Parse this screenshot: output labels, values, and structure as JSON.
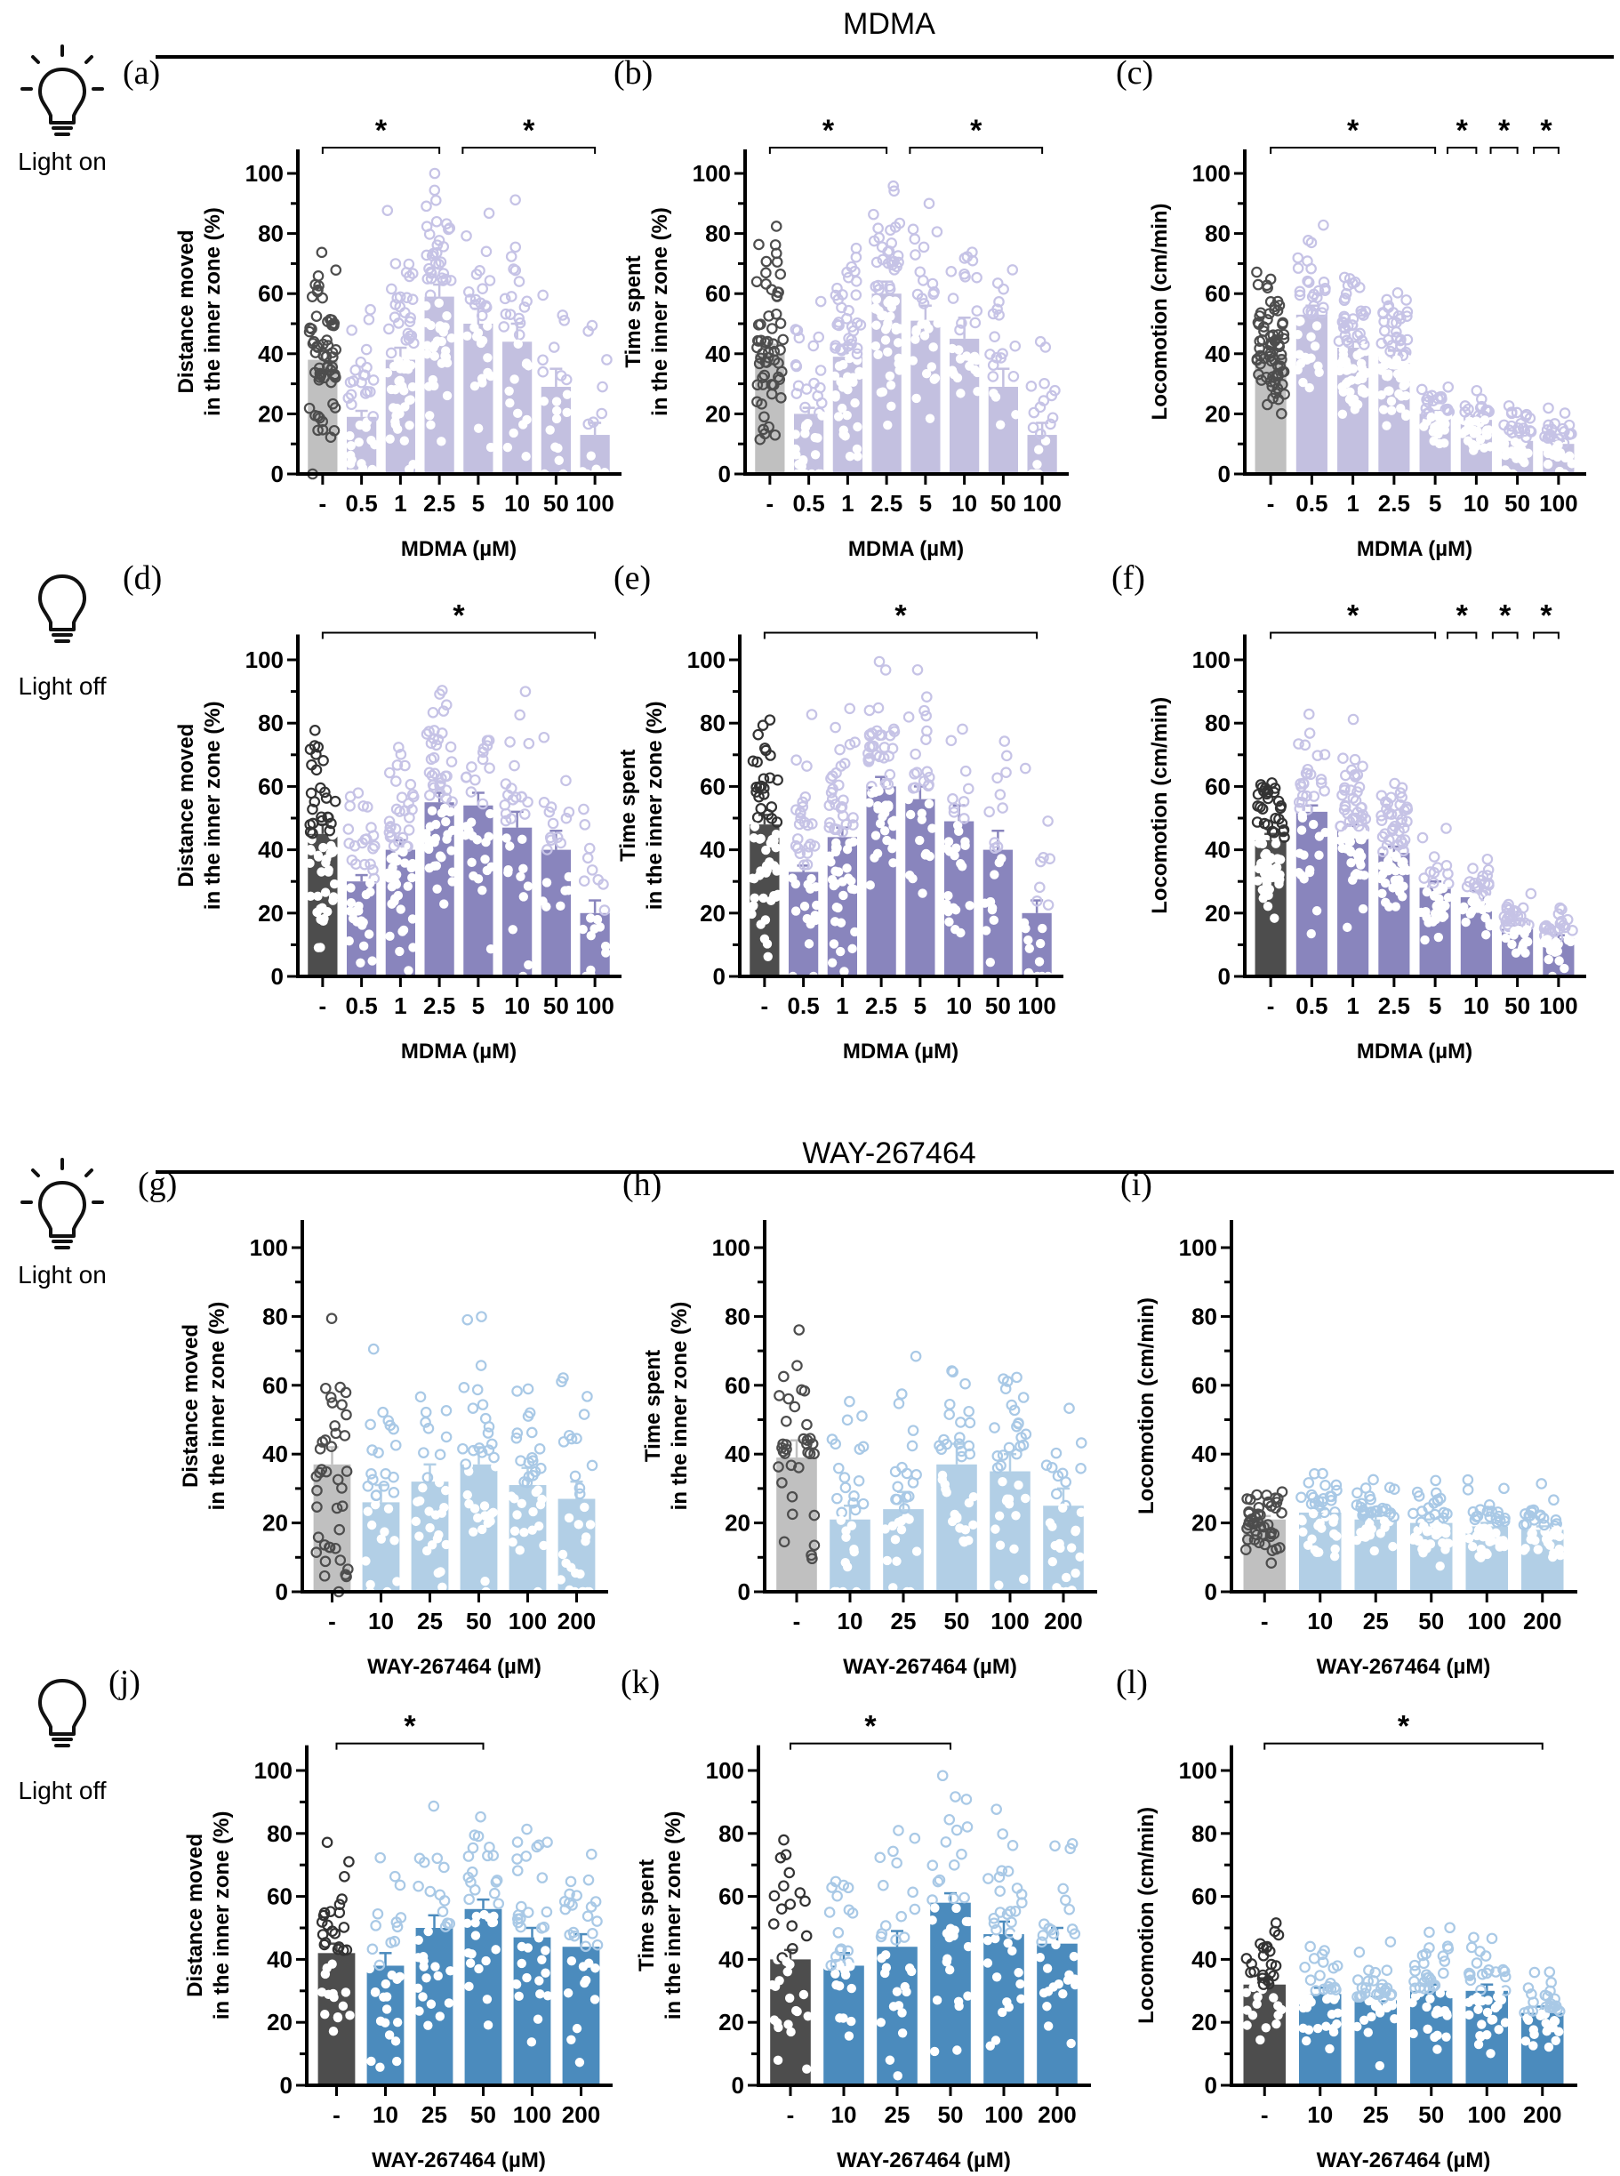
{
  "sections": [
    {
      "title": "MDMA"
    },
    {
      "title": "WAY-267464"
    }
  ],
  "conditions": {
    "light_on": "Light on",
    "light_off": "Light off"
  },
  "colors": {
    "control_light_on": "#c0c0c0",
    "control_light_off": "#4d4d4d",
    "mdma_light_on": "#c3c0e0",
    "mdma_light_off": "#8985bd",
    "way_light_on": "#b2cfe6",
    "way_light_off": "#4b8bbd",
    "point_light_on_dark": "#4d4d4d",
    "point_light_on_open": "#c6c3e6",
    "point_way_open": "#a9c9e6"
  },
  "chart_data": [
    {
      "id": "a",
      "letter": "(a)",
      "type": "bar",
      "condition": "light_on",
      "drug": "mdma",
      "categories": [
        "-",
        "0.5",
        "1",
        "2.5",
        "5",
        "10",
        "50",
        "100"
      ],
      "values": [
        38,
        19,
        38,
        59,
        50,
        44,
        29,
        13
      ],
      "sem": [
        3,
        2,
        4,
        4,
        5,
        6,
        6,
        4
      ],
      "n": [
        60,
        40,
        60,
        60,
        30,
        30,
        20,
        20
      ],
      "ylabel": [
        "Distance moved",
        "in the inner zone (%)"
      ],
      "xlabel": "MDMA (µM)",
      "yticks": [
        0,
        20,
        40,
        60,
        80,
        100
      ],
      "ylim": [
        0,
        108
      ],
      "significance": [
        {
          "from": 0,
          "to": 3,
          "label": "*"
        },
        {
          "from": 3.6,
          "to": 7,
          "label": "*"
        }
      ]
    },
    {
      "id": "b",
      "letter": "(b)",
      "type": "bar",
      "condition": "light_on",
      "drug": "mdma",
      "categories": [
        "-",
        "0.5",
        "1",
        "2.5",
        "5",
        "10",
        "50",
        "100"
      ],
      "values": [
        40,
        20,
        39,
        60,
        51,
        45,
        29,
        13
      ],
      "sem": [
        3,
        2,
        4,
        4,
        5,
        7,
        6,
        4
      ],
      "n": [
        60,
        40,
        60,
        60,
        30,
        30,
        20,
        20
      ],
      "ylabel": [
        "Time spent",
        "in the inner zone (%)"
      ],
      "xlabel": "MDMA (µM)",
      "yticks": [
        0,
        20,
        40,
        60,
        80,
        100
      ],
      "ylim": [
        0,
        108
      ],
      "significance": [
        {
          "from": 0,
          "to": 3,
          "label": "*"
        },
        {
          "from": 3.6,
          "to": 7,
          "label": "*"
        }
      ]
    },
    {
      "id": "c",
      "letter": "(c)",
      "type": "bar",
      "condition": "light_on",
      "drug": "mdma",
      "categories": [
        "-",
        "0.5",
        "1",
        "2.5",
        "5",
        "10",
        "50",
        "100"
      ],
      "values": [
        40,
        53,
        42,
        39,
        20,
        18,
        11,
        10
      ],
      "sem": [
        2,
        3,
        2,
        2,
        1,
        1,
        1,
        1
      ],
      "n": [
        70,
        40,
        70,
        70,
        40,
        40,
        40,
        40
      ],
      "ylabel": [
        "Locomotion (cm/min)"
      ],
      "xlabel": "MDMA (µM)",
      "yticks": [
        0,
        20,
        40,
        60,
        80,
        100
      ],
      "ylim": [
        0,
        108
      ],
      "significance": [
        {
          "from": 0,
          "to": 4,
          "label": "*"
        },
        {
          "from": 4.3,
          "to": 5,
          "label": "*"
        },
        {
          "from": 5.35,
          "to": 6,
          "label": "*"
        },
        {
          "from": 6.4,
          "to": 7,
          "label": "*"
        }
      ]
    },
    {
      "id": "d",
      "letter": "(d)",
      "type": "bar",
      "condition": "light_off",
      "drug": "mdma",
      "categories": [
        "-",
        "0.5",
        "1",
        "2.5",
        "5",
        "10",
        "50",
        "100"
      ],
      "values": [
        45,
        30,
        40,
        55,
        54,
        47,
        40,
        20
      ],
      "sem": [
        3,
        2,
        3,
        3,
        4,
        5,
        6,
        4
      ],
      "n": [
        60,
        40,
        60,
        60,
        30,
        30,
        20,
        20
      ],
      "ylabel": [
        "Distance moved",
        "in the inner zone (%)"
      ],
      "xlabel": "MDMA (µM)",
      "yticks": [
        0,
        20,
        40,
        60,
        80,
        100
      ],
      "ylim": [
        0,
        108
      ],
      "significance": [
        {
          "from": 0,
          "to": 7,
          "label": "*"
        }
      ]
    },
    {
      "id": "e",
      "letter": "(e)",
      "type": "bar",
      "condition": "light_off",
      "drug": "mdma",
      "categories": [
        "-",
        "0.5",
        "1",
        "2.5",
        "5",
        "10",
        "50",
        "100"
      ],
      "values": [
        48,
        33,
        44,
        60,
        56,
        49,
        40,
        20
      ],
      "sem": [
        3,
        2,
        3,
        3,
        4,
        5,
        6,
        4
      ],
      "n": [
        60,
        40,
        60,
        60,
        30,
        30,
        20,
        20
      ],
      "ylabel": [
        "Time spent",
        "in the inner zone (%)"
      ],
      "xlabel": "MDMA (µM)",
      "yticks": [
        0,
        20,
        40,
        60,
        80,
        100
      ],
      "ylim": [
        0,
        108
      ],
      "significance": [
        {
          "from": 0,
          "to": 7,
          "label": "*"
        }
      ]
    },
    {
      "id": "f",
      "letter": "(f)",
      "type": "bar",
      "condition": "light_off",
      "drug": "mdma",
      "categories": [
        "-",
        "0.5",
        "1",
        "2.5",
        "5",
        "10",
        "50",
        "100"
      ],
      "values": [
        43,
        52,
        46,
        39,
        28,
        25,
        15,
        12
      ],
      "sem": [
        2,
        2,
        2,
        2,
        2,
        2,
        1,
        1
      ],
      "n": [
        70,
        40,
        70,
        70,
        40,
        40,
        40,
        40
      ],
      "ylabel": [
        "Locomotion (cm/min)"
      ],
      "xlabel": "MDMA (µM)",
      "yticks": [
        0,
        20,
        40,
        60,
        80,
        100
      ],
      "ylim": [
        0,
        108
      ],
      "significance": [
        {
          "from": 0,
          "to": 4,
          "label": "*"
        },
        {
          "from": 4.3,
          "to": 5,
          "label": "*"
        },
        {
          "from": 5.4,
          "to": 6,
          "label": "*"
        },
        {
          "from": 6.4,
          "to": 7,
          "label": "*"
        }
      ]
    },
    {
      "id": "g",
      "letter": "(g)",
      "type": "bar",
      "condition": "light_on",
      "drug": "way",
      "categories": [
        "-",
        "10",
        "25",
        "50",
        "100",
        "200"
      ],
      "values": [
        37,
        26,
        32,
        37,
        31,
        27
      ],
      "sem": [
        5,
        5,
        5,
        5,
        5,
        5
      ],
      "n": [
        40,
        30,
        30,
        35,
        35,
        30
      ],
      "ylabel": [
        "Distance moved",
        "in the inner zone (%)"
      ],
      "xlabel": "WAY-267464 (µM)",
      "yticks": [
        0,
        20,
        40,
        60,
        80,
        100
      ],
      "ylim": [
        0,
        108
      ],
      "significance": []
    },
    {
      "id": "h",
      "letter": "(h)",
      "type": "bar",
      "condition": "light_on",
      "drug": "way",
      "categories": [
        "-",
        "10",
        "25",
        "50",
        "100",
        "200"
      ],
      "values": [
        39,
        21,
        24,
        37,
        35,
        25
      ],
      "sem": [
        5,
        4,
        5,
        6,
        5,
        5
      ],
      "n": [
        35,
        30,
        30,
        35,
        35,
        30
      ],
      "ylabel": [
        "Time spent",
        "in the inner zone (%)"
      ],
      "xlabel": "WAY-267464 (µM)",
      "yticks": [
        0,
        20,
        40,
        60,
        80,
        100
      ],
      "ylim": [
        0,
        108
      ],
      "significance": []
    },
    {
      "id": "i",
      "letter": "(i)",
      "type": "bar",
      "condition": "light_on",
      "drug": "way",
      "categories": [
        "-",
        "10",
        "25",
        "50",
        "100",
        "200"
      ],
      "values": [
        21,
        23,
        21,
        20,
        19,
        18
      ],
      "sem": [
        1,
        1,
        1,
        1,
        1,
        1
      ],
      "n": [
        45,
        40,
        40,
        45,
        45,
        40
      ],
      "ylabel": [
        "Locomotion (cm/min)"
      ],
      "xlabel": "WAY-267464 (µM)",
      "yticks": [
        0,
        20,
        40,
        60,
        80,
        100
      ],
      "ylim": [
        0,
        108
      ],
      "significance": []
    },
    {
      "id": "j",
      "letter": "(j)",
      "type": "bar",
      "condition": "light_off",
      "drug": "way",
      "categories": [
        "-",
        "10",
        "25",
        "50",
        "100",
        "200"
      ],
      "values": [
        42,
        38,
        50,
        56,
        47,
        44
      ],
      "sem": [
        3,
        4,
        4,
        3,
        3,
        4
      ],
      "n": [
        35,
        30,
        30,
        35,
        35,
        30
      ],
      "ylabel": [
        "Distance moved",
        "in the inner zone (%)"
      ],
      "xlabel": "WAY-267464 (µM)",
      "yticks": [
        0,
        20,
        40,
        60,
        80,
        100
      ],
      "ylim": [
        0,
        108
      ],
      "significance": [
        {
          "from": 0,
          "to": 3,
          "label": "*"
        }
      ]
    },
    {
      "id": "k",
      "letter": "(k)",
      "type": "bar",
      "condition": "light_off",
      "drug": "way",
      "categories": [
        "-",
        "10",
        "25",
        "50",
        "100",
        "200"
      ],
      "values": [
        40,
        38,
        44,
        58,
        48,
        45
      ],
      "sem": [
        3,
        4,
        5,
        3,
        4,
        5
      ],
      "n": [
        35,
        30,
        30,
        35,
        35,
        30
      ],
      "ylabel": [
        "Time spent",
        "in the inner zone (%)"
      ],
      "xlabel": "WAY-267464 (µM)",
      "yticks": [
        0,
        20,
        40,
        60,
        80,
        100
      ],
      "ylim": [
        0,
        108
      ],
      "significance": [
        {
          "from": 0,
          "to": 3,
          "label": "*"
        }
      ]
    },
    {
      "id": "l",
      "letter": "(l)",
      "type": "bar",
      "condition": "light_off",
      "drug": "way",
      "categories": [
        "-",
        "10",
        "25",
        "50",
        "100",
        "200"
      ],
      "values": [
        32,
        29,
        27,
        30,
        30,
        23
      ],
      "sem": [
        2,
        2,
        1,
        2,
        2,
        2
      ],
      "n": [
        40,
        40,
        40,
        45,
        45,
        40
      ],
      "ylabel": [
        "Locomotion (cm/min)"
      ],
      "xlabel": "WAY-267464 (µM)",
      "yticks": [
        0,
        20,
        40,
        60,
        80,
        100
      ],
      "ylim": [
        0,
        108
      ],
      "significance": [
        {
          "from": 0,
          "to": 5,
          "label": "*"
        }
      ]
    }
  ]
}
